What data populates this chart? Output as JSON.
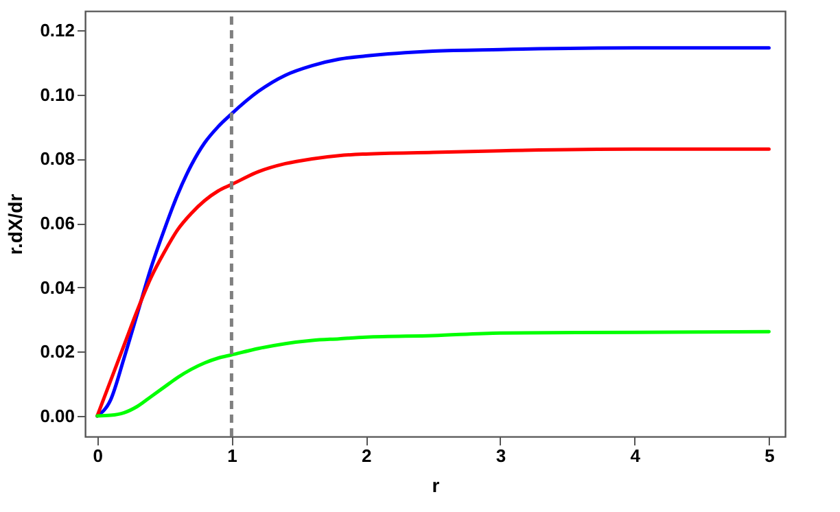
{
  "chart_data": {
    "type": "line",
    "xlabel": "r",
    "ylabel": "r.dX/dr",
    "x": [
      0,
      0.1,
      0.2,
      0.3,
      0.4,
      0.5,
      0.6,
      0.7,
      0.8,
      0.9,
      1.0,
      1.2,
      1.4,
      1.6,
      1.8,
      2.0,
      2.5,
      3.0,
      4.0,
      5.0
    ],
    "series": [
      {
        "color": "#0000ff",
        "values": [
          0,
          0.005,
          0.018,
          0.032,
          0.046,
          0.058,
          0.069,
          0.078,
          0.085,
          0.09,
          0.094,
          0.101,
          0.106,
          0.109,
          0.111,
          0.112,
          0.1135,
          0.114,
          0.1145,
          0.1145
        ]
      },
      {
        "color": "#ff0000",
        "values": [
          0,
          0.011,
          0.022,
          0.033,
          0.043,
          0.051,
          0.058,
          0.063,
          0.067,
          0.07,
          0.072,
          0.076,
          0.0785,
          0.08,
          0.081,
          0.0815,
          0.082,
          0.0825,
          0.083,
          0.083
        ]
      },
      {
        "color": "#00ff00",
        "values": [
          0,
          0.0002,
          0.001,
          0.003,
          0.006,
          0.009,
          0.012,
          0.0145,
          0.0165,
          0.018,
          0.019,
          0.021,
          0.0225,
          0.0235,
          0.024,
          0.0245,
          0.025,
          0.0258,
          0.026,
          0.0262
        ]
      }
    ],
    "xlim": [
      -0.09,
      5.12
    ],
    "xticks": [
      0,
      1,
      2,
      3,
      4,
      5
    ],
    "ylim": [
      -0.0064,
      0.126
    ],
    "yticks": [
      {
        "value": 0,
        "label": "0.00"
      },
      {
        "value": 0.02,
        "label": "0.02"
      },
      {
        "value": 0.04,
        "label": "0.04"
      },
      {
        "value": 0.06,
        "label": "0.06"
      },
      {
        "value": 0.08,
        "label": "0.08"
      },
      {
        "value": 0.1,
        "label": "0.10"
      },
      {
        "value": 0.12,
        "label": "0.12"
      }
    ],
    "ref_lines": [
      {
        "axis": "x",
        "value": 1,
        "color": "#808080",
        "line_style": "dashed"
      }
    ],
    "grid": false,
    "marker": "none",
    "line_style": "solid"
  }
}
